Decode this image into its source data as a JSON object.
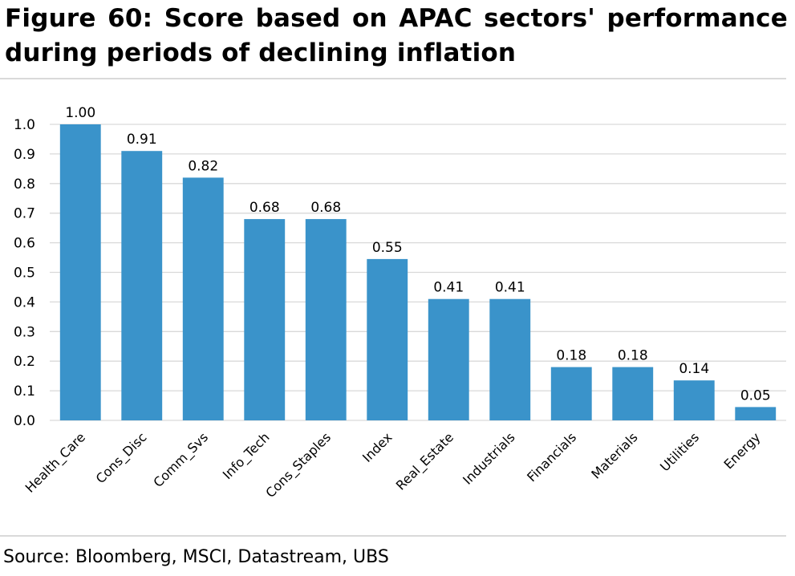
{
  "title": "Figure 60: Score based on APAC sectors' performance during periods of declining inflation",
  "source": "Source: Bloomberg, MSCI, Datastream, UBS",
  "colors": {
    "bar": "#3a93ca",
    "grid": "#d9d9d9"
  },
  "chart_data": {
    "type": "bar",
    "categories": [
      "Health_Care",
      "Cons_Disc",
      "Comm_Svs",
      "Info_Tech",
      "Cons_Staples",
      "Index",
      "Real_Estate",
      "Industrials",
      "Financials",
      "Materials",
      "Utilities",
      "Energy"
    ],
    "values": [
      1.0,
      0.91,
      0.82,
      0.68,
      0.68,
      0.545,
      0.41,
      0.41,
      0.18,
      0.18,
      0.135,
      0.045
    ],
    "data_labels": [
      "1.00",
      "0.91",
      "0.82",
      "0.68",
      "0.68",
      "0.55",
      "0.41",
      "0.41",
      "0.18",
      "0.18",
      "0.14",
      "0.05"
    ],
    "ylim": [
      0,
      1.0
    ],
    "yticks": [
      "0.0",
      "0.1",
      "0.2",
      "0.3",
      "0.4",
      "0.5",
      "0.6",
      "0.7",
      "0.8",
      "0.9",
      "1.0"
    ],
    "xlabel": "",
    "ylabel": "",
    "grid": true,
    "legend": "none"
  }
}
